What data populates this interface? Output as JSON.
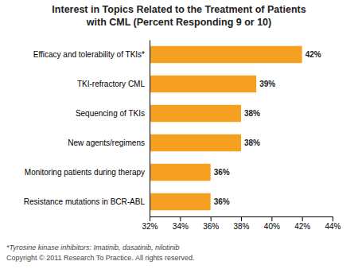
{
  "chart_data": {
    "type": "bar",
    "orientation": "horizontal",
    "title": [
      "Interest in Topics Related to the Treatment of Patients",
      "with CML (Percent Responding 9 or 10)"
    ],
    "categories": [
      "Resistance mutations in BCR-ABL",
      "Monitoring patients during therapy",
      "New agents/regimens",
      "Sequencing of TKIs",
      "TKI-refractory CML",
      "Efficacy and tolerability of TKIs*"
    ],
    "values": [
      36,
      36,
      38,
      38,
      39,
      42
    ],
    "value_labels": [
      "36%",
      "36%",
      "38%",
      "38%",
      "39%",
      "42%"
    ],
    "data_labels": true,
    "color": "#F5A020",
    "xlim": [
      32,
      44
    ],
    "xticks": [
      {
        "value": 32,
        "label": "32%"
      },
      {
        "value": 34,
        "label": "34%"
      },
      {
        "value": 36,
        "label": "36%"
      },
      {
        "value": 38,
        "label": "38%"
      },
      {
        "value": 40,
        "label": "40%"
      },
      {
        "value": 42,
        "label": "42%"
      },
      {
        "value": 44,
        "label": "44%"
      }
    ],
    "annotations": [
      "*Tyrosine kinase inhibitors: Imatinib, dasatinib, nilotinib",
      "Copyright © 2011 Research To Practice. All rights reserved."
    ]
  }
}
